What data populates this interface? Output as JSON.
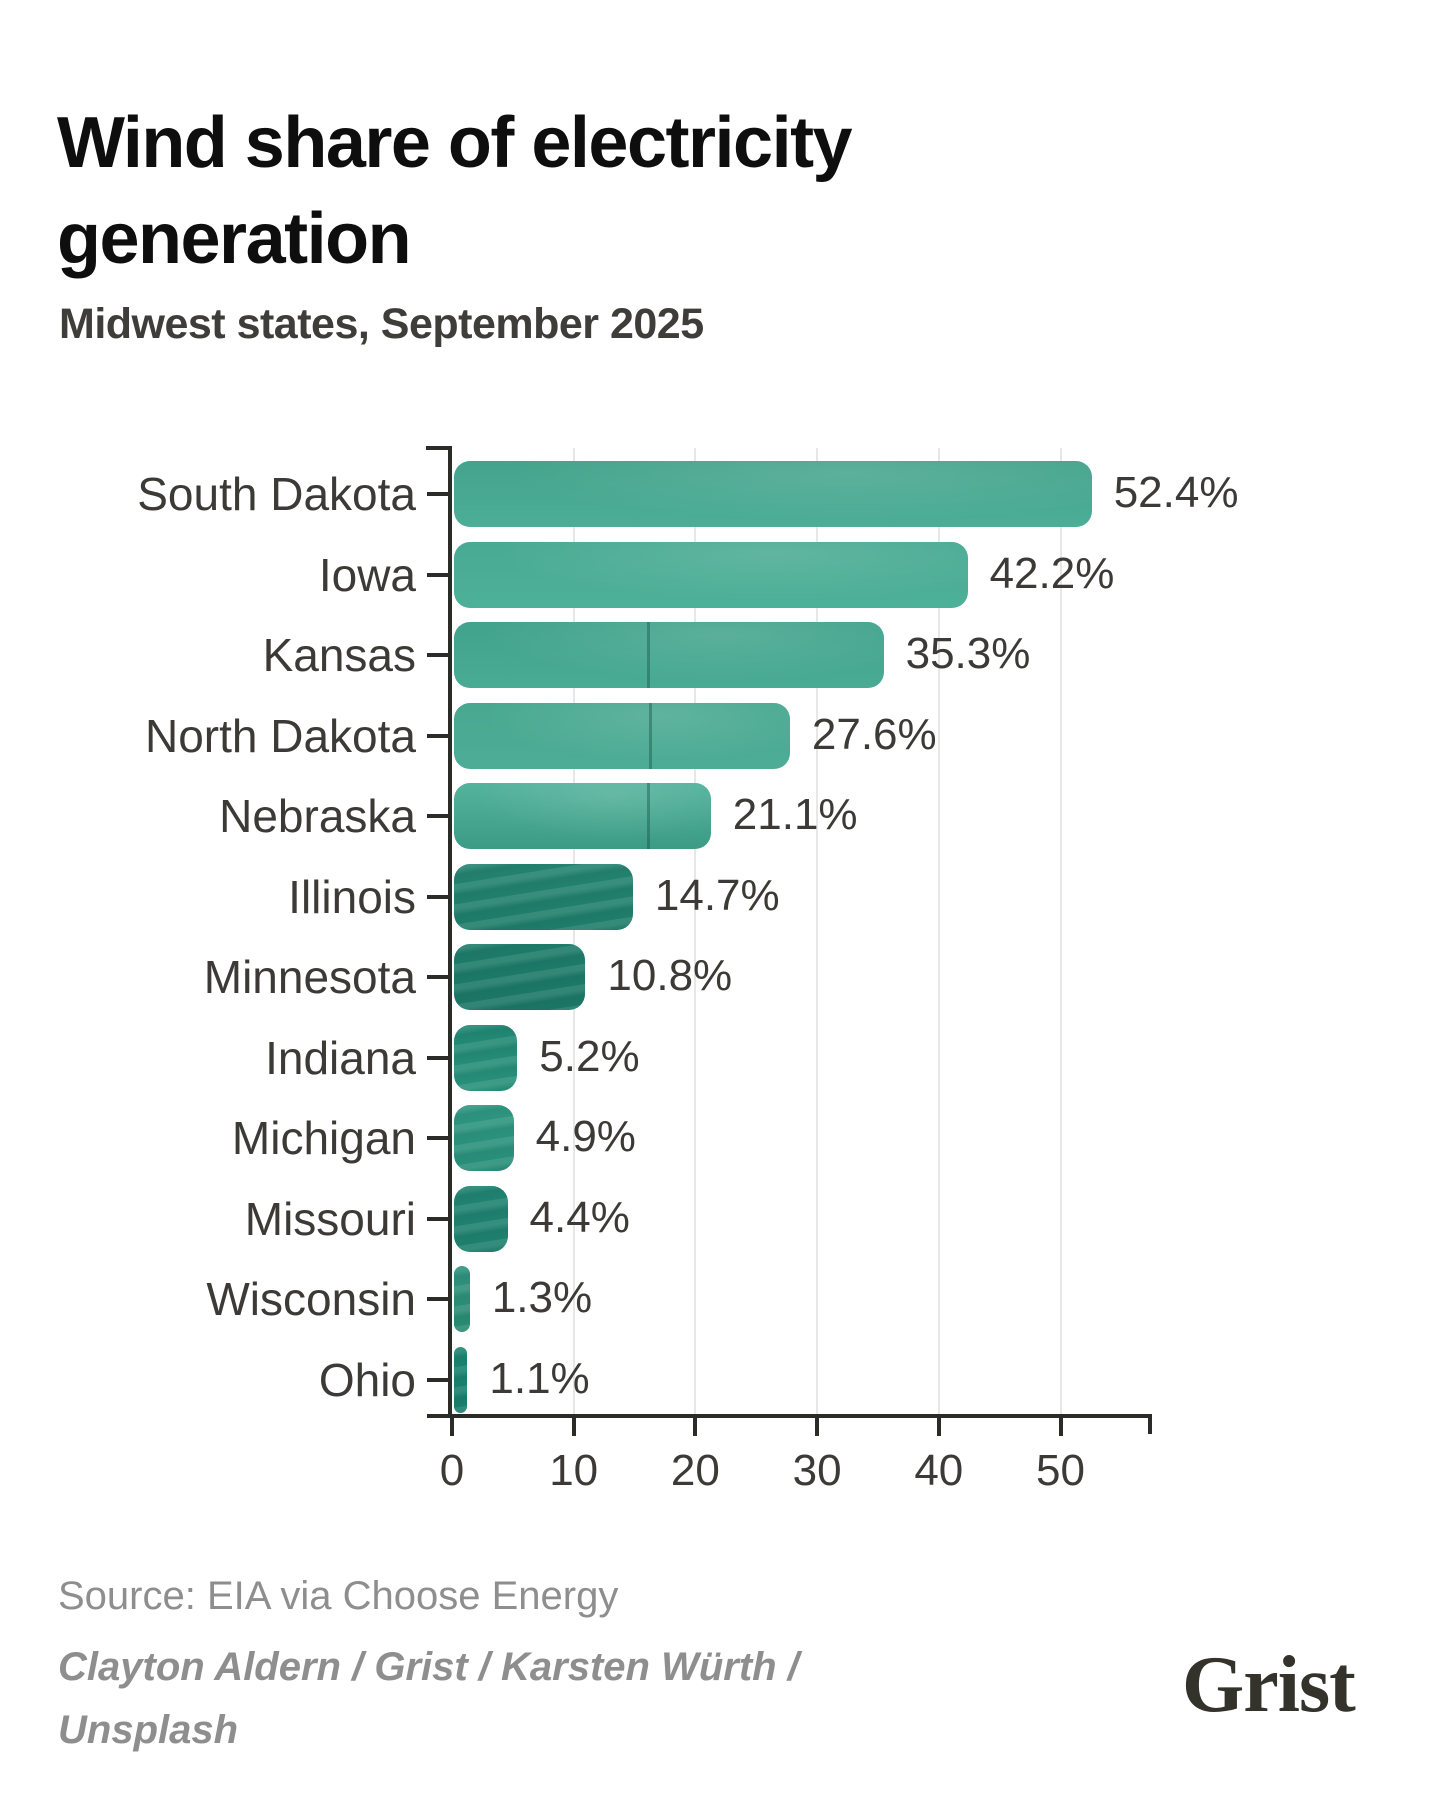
{
  "header": {
    "title": "Wind share of electricity generation",
    "subtitle": "Midwest states, September 2025"
  },
  "chart_data": {
    "type": "bar",
    "orientation": "horizontal",
    "title": "Wind share of electricity generation",
    "subtitle": "Midwest states, September 2025",
    "categories": [
      "South Dakota",
      "Iowa",
      "Kansas",
      "North Dakota",
      "Nebraska",
      "Illinois",
      "Minnesota",
      "Indiana",
      "Michigan",
      "Missouri",
      "Wisconsin",
      "Ohio"
    ],
    "values": [
      52.4,
      42.2,
      35.3,
      27.6,
      21.1,
      14.7,
      10.8,
      5.2,
      4.9,
      4.4,
      1.3,
      1.1
    ],
    "value_labels": [
      "52.4%",
      "42.2%",
      "35.3%",
      "27.6%",
      "21.1%",
      "14.7%",
      "10.8%",
      "5.2%",
      "4.9%",
      "4.4%",
      "1.3%",
      "1.1%"
    ],
    "x_ticks": [
      0,
      10,
      20,
      30,
      40,
      50
    ],
    "x_tick_labels": [
      "0",
      "10",
      "20",
      "30",
      "40",
      "50"
    ],
    "xlim": [
      0,
      57.4
    ],
    "xlabel": "",
    "ylabel": "",
    "grid": "vertical",
    "legend": "none",
    "bar_fill_style": "photo-tinted teal (wind turbine in field)",
    "bar_colors": [
      [
        "#44a38c",
        "#4cae97"
      ],
      [
        "#49aa93",
        "#4db098"
      ],
      [
        "#42a38c",
        "#49ab94"
      ],
      [
        "#48a890",
        "#4dac96"
      ],
      [
        "#54b39d",
        "#3b9b84"
      ],
      [
        "#24836f",
        "#1e7c6a"
      ],
      [
        "#1e7c6a",
        "#1b7666"
      ],
      [
        "#208672",
        "#28917b"
      ],
      [
        "#2f9681",
        "#278e79"
      ],
      [
        "#208371",
        "#1e7f6d"
      ],
      [
        "#2e927e",
        "#288a70"
      ],
      [
        "#1c8471",
        "#177d6a"
      ]
    ]
  },
  "footer": {
    "source": "Source: EIA via Choose Energy",
    "credit_line1": "Clayton Aldern / Grist / Karsten Würth /",
    "credit_line2": "Unsplash",
    "logo": "Grist"
  },
  "colors": {
    "accent_teal": "#45a78f",
    "title_text": "#0e0e0e",
    "label_text": "#3b3a36",
    "muted_text": "#8e8e8e",
    "axis": "#2b2b27",
    "grid": "#e7e7e7",
    "background": "#ffffff"
  }
}
